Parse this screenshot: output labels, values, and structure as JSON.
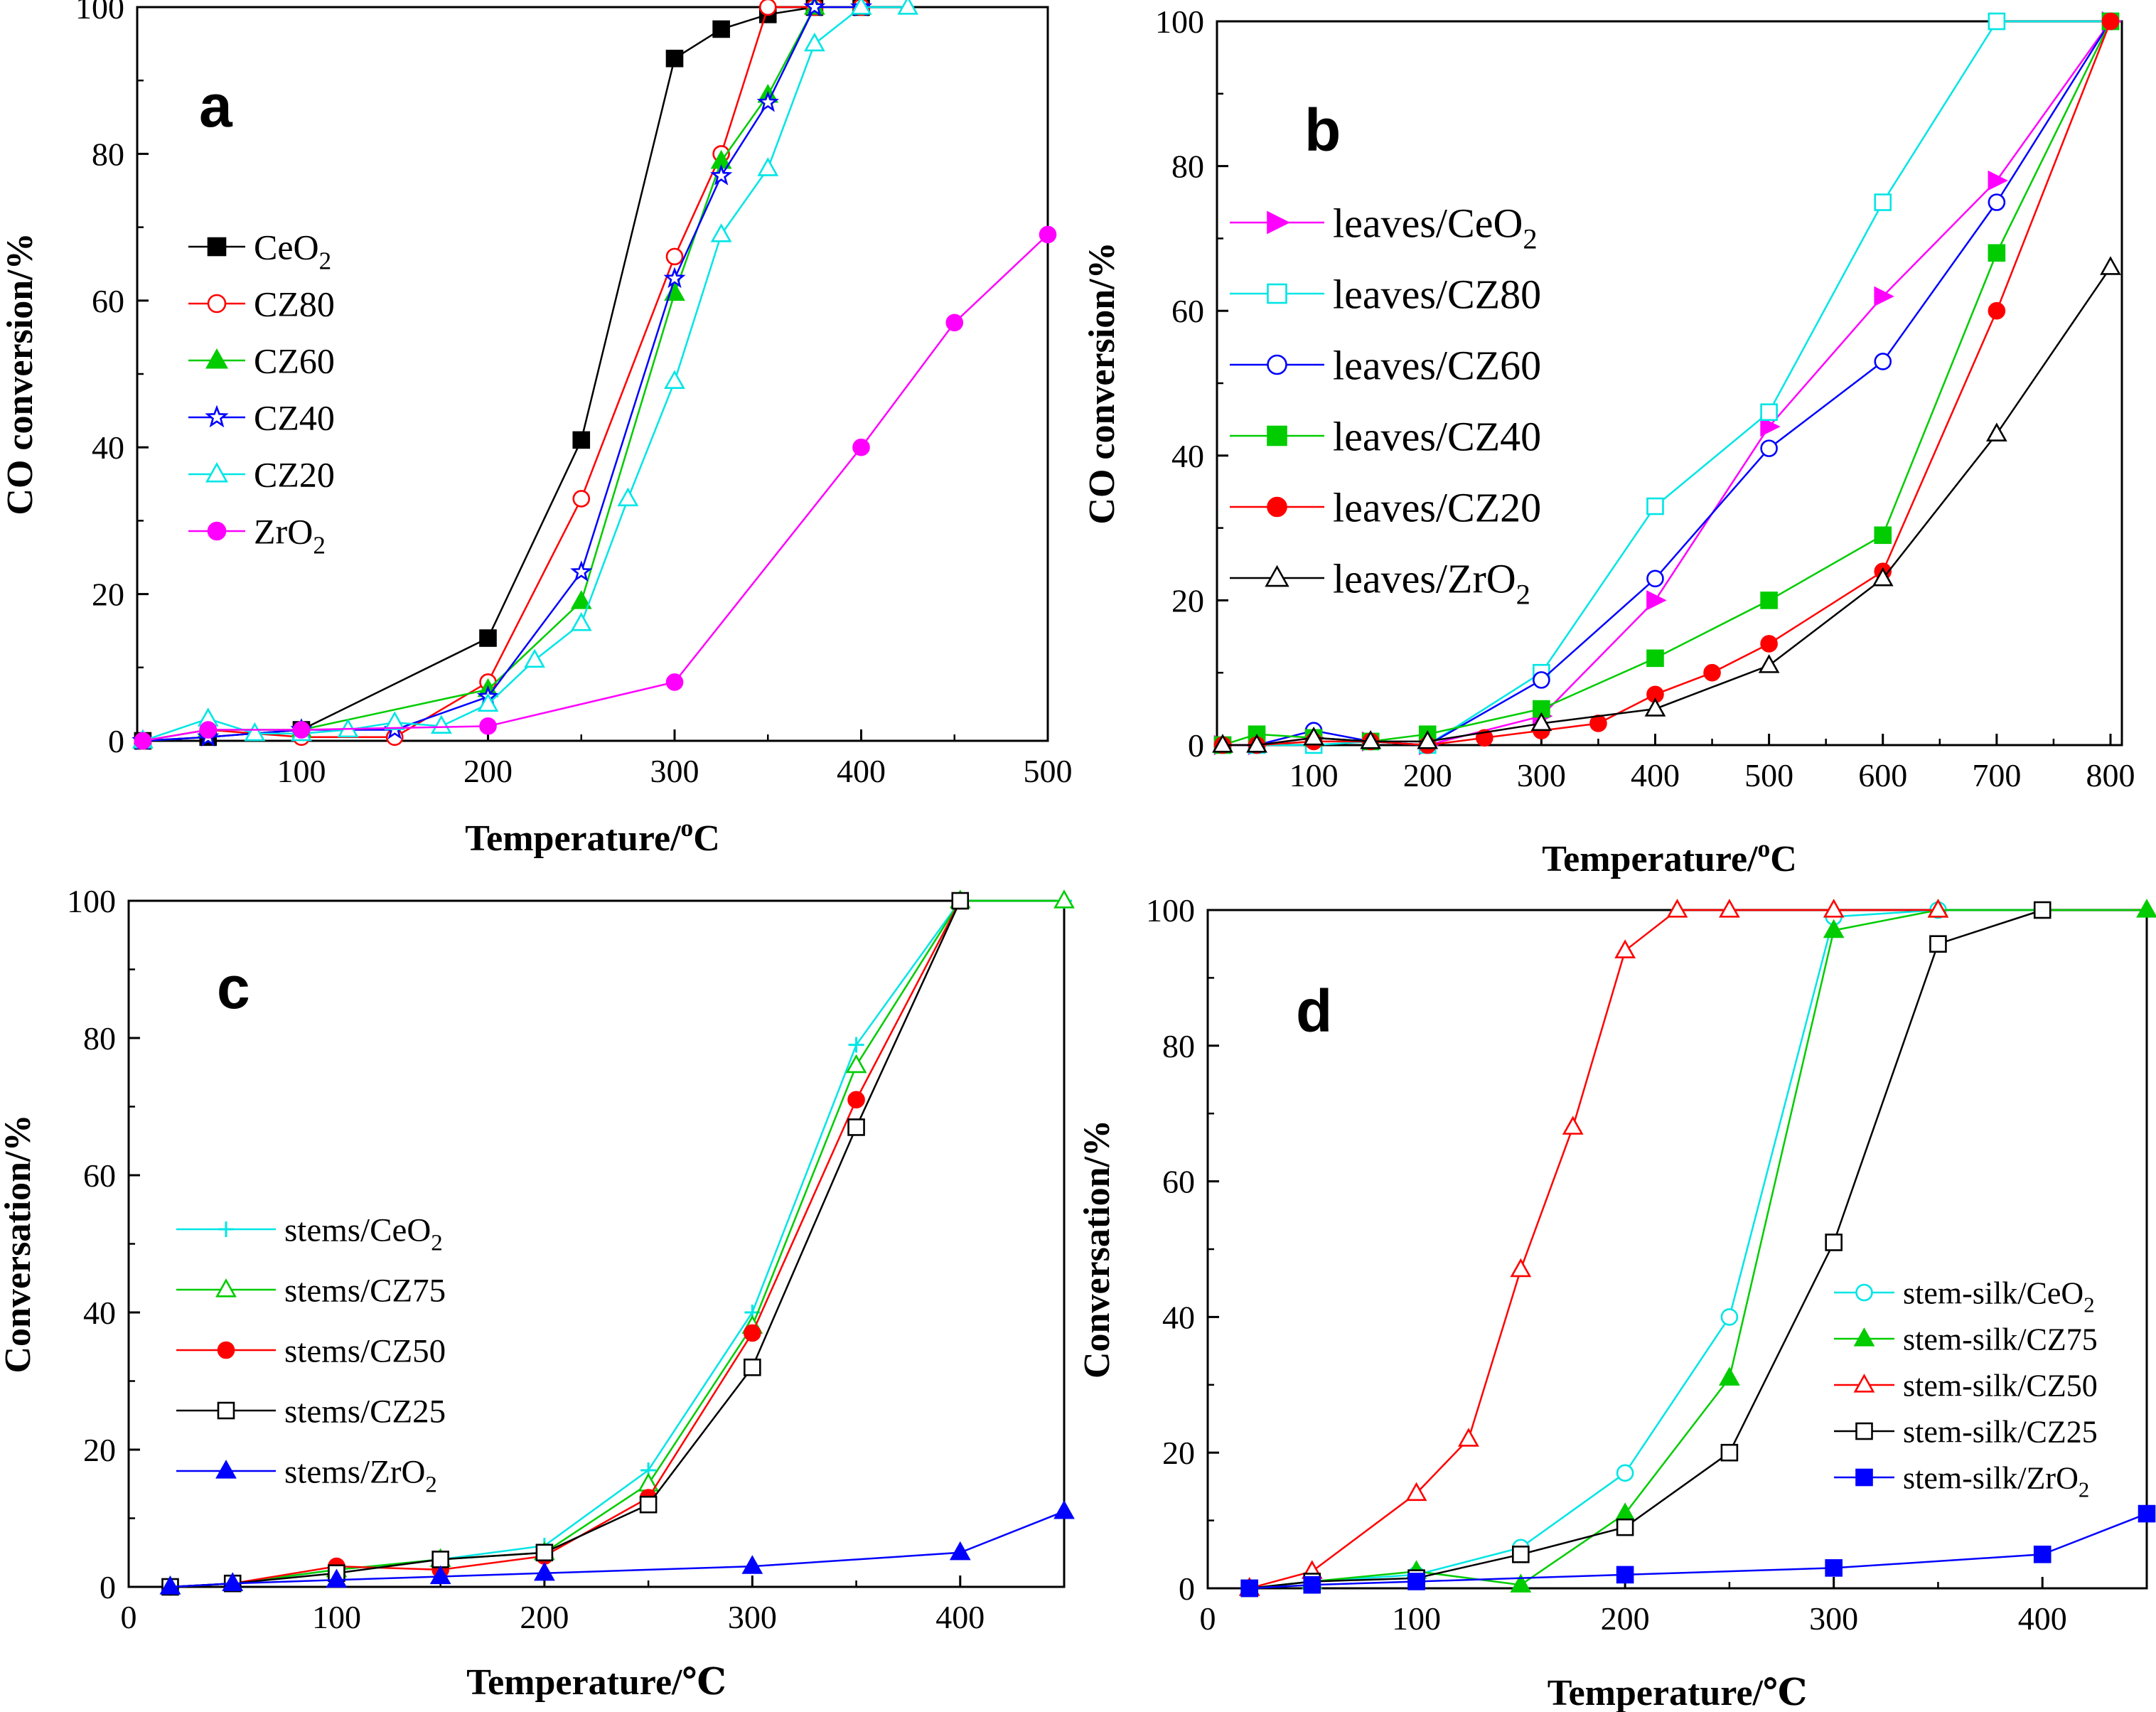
{
  "figure": {
    "panels": [
      "a",
      "b",
      "c",
      "d"
    ]
  },
  "chart_data": [
    {
      "panel": "a",
      "type": "line",
      "xlabel": "Temperature/oC",
      "ylabel": "CO conversion/%",
      "xlim": [
        12,
        500
      ],
      "ylim": [
        0,
        100
      ],
      "xticks": [
        100,
        200,
        300,
        400,
        500
      ],
      "yticks": [
        0,
        20,
        40,
        60,
        80,
        100
      ],
      "series": [
        {
          "name": "CeO2",
          "color": "#000000",
          "marker": "square-filled",
          "x": [
            15,
            50,
            100,
            200,
            250,
            300,
            325,
            350,
            375,
            400
          ],
          "y": [
            0,
            0.5,
            1.5,
            14,
            41,
            93,
            97,
            99,
            100,
            100
          ]
        },
        {
          "name": "CZ80",
          "color": "#ff0000",
          "marker": "circle-open",
          "x": [
            15,
            50,
            100,
            150,
            200,
            250,
            300,
            325,
            350,
            375,
            400
          ],
          "y": [
            0,
            1.5,
            0.5,
            0.5,
            8,
            33,
            66,
            80,
            100,
            100,
            100
          ]
        },
        {
          "name": "CZ60",
          "color": "#00cc00",
          "marker": "triangle-filled",
          "x": [
            15,
            50,
            100,
            200,
            250,
            300,
            325,
            350,
            375,
            400
          ],
          "y": [
            0,
            1.5,
            1.5,
            7,
            19,
            61,
            79,
            88,
            100,
            100
          ]
        },
        {
          "name": "CZ40",
          "color": "#0000ff",
          "marker": "star-open",
          "x": [
            15,
            50,
            100,
            150,
            200,
            250,
            300,
            325,
            350,
            375,
            400
          ],
          "y": [
            0,
            0.5,
            1.5,
            1.5,
            6,
            23,
            63,
            77,
            87,
            100,
            100
          ]
        },
        {
          "name": "CZ20",
          "color": "#00e5e5",
          "marker": "triangle-open",
          "x": [
            15,
            50,
            75,
            100,
            125,
            150,
            175,
            200,
            225,
            250,
            275,
            300,
            325,
            350,
            375,
            400,
            425
          ],
          "y": [
            0,
            3,
            1,
            1,
            1.5,
            2.5,
            2,
            5,
            11,
            16,
            33,
            49,
            69,
            78,
            95,
            100,
            100
          ]
        },
        {
          "name": "ZrO2",
          "color": "#ff00ff",
          "marker": "circle-filled",
          "x": [
            15,
            50,
            100,
            200,
            300,
            400,
            450,
            500
          ],
          "y": [
            0,
            1.5,
            1.5,
            2,
            8,
            40,
            57,
            69
          ]
        }
      ],
      "legend": [
        "CeO2",
        "CZ80",
        "CZ60",
        "CZ40",
        "CZ20",
        "ZrO2"
      ]
    },
    {
      "panel": "b",
      "type": "line",
      "xlabel": "Temperature/oC",
      "ylabel": "CO conversion/%",
      "xlim": [
        15,
        810
      ],
      "ylim": [
        0,
        100
      ],
      "xticks": [
        100,
        200,
        300,
        400,
        500,
        600,
        700,
        800
      ],
      "yticks": [
        0,
        20,
        40,
        60,
        80,
        100
      ],
      "series": [
        {
          "name": "leaves/CeO2",
          "color": "#ff00ff",
          "marker": "triangle-right-filled",
          "x": [
            20,
            50,
            100,
            150,
            200,
            300,
            400,
            500,
            600,
            700,
            800
          ],
          "y": [
            0,
            0,
            1,
            0.5,
            0,
            4,
            20,
            44,
            62,
            78,
            100
          ]
        },
        {
          "name": "leaves/CZ80",
          "color": "#00e5e5",
          "marker": "square-open",
          "x": [
            20,
            50,
            100,
            150,
            200,
            300,
            400,
            500,
            600,
            700,
            800
          ],
          "y": [
            0,
            0,
            0,
            0.5,
            0,
            10,
            33,
            46,
            75,
            100,
            100
          ]
        },
        {
          "name": "leaves/CZ60",
          "color": "#0000ff",
          "marker": "circle-open",
          "x": [
            20,
            50,
            100,
            150,
            200,
            300,
            400,
            500,
            600,
            700,
            800
          ],
          "y": [
            0,
            0,
            2,
            0.5,
            0,
            9,
            23,
            41,
            53,
            75,
            100
          ]
        },
        {
          "name": "leaves/CZ40",
          "color": "#00cc00",
          "marker": "square-filled",
          "x": [
            20,
            50,
            100,
            150,
            200,
            300,
            400,
            500,
            600,
            700,
            800
          ],
          "y": [
            0,
            1.5,
            1,
            0.5,
            1.5,
            5,
            12,
            20,
            29,
            68,
            100
          ]
        },
        {
          "name": "leaves/CZ20",
          "color": "#ff0000",
          "marker": "circle-filled",
          "x": [
            20,
            50,
            100,
            150,
            200,
            250,
            300,
            350,
            400,
            450,
            500,
            600,
            700,
            800
          ],
          "y": [
            0,
            0,
            0.5,
            0.5,
            0,
            1,
            2,
            3,
            7,
            10,
            14,
            24,
            60,
            100
          ]
        },
        {
          "name": "leaves/ZrO2",
          "color": "#000000",
          "marker": "triangle-open",
          "x": [
            20,
            50,
            100,
            150,
            200,
            300,
            400,
            500,
            600,
            700,
            800
          ],
          "y": [
            0,
            0,
            1,
            0.5,
            0.5,
            3,
            5,
            11,
            23,
            43,
            66
          ]
        }
      ],
      "legend": [
        "leaves/CeO2",
        "leaves/CZ80",
        "leaves/CZ60",
        "leaves/CZ40",
        "leaves/CZ20",
        "leaves/ZrO2"
      ]
    },
    {
      "panel": "c",
      "type": "line",
      "xlabel": "Temperature/℃",
      "ylabel": "Conversation/%",
      "xlim": [
        0,
        450
      ],
      "ylim": [
        0,
        100
      ],
      "xticks": [
        0,
        100,
        200,
        300,
        400
      ],
      "yticks": [
        0,
        20,
        40,
        60,
        80,
        100
      ],
      "series": [
        {
          "name": "stems/CeO2",
          "color": "#00e5e5",
          "marker": "plus",
          "x": [
            20,
            50,
            100,
            150,
            200,
            250,
            300,
            350,
            400,
            450
          ],
          "y": [
            0,
            0.5,
            2.5,
            4,
            6,
            17,
            40,
            79,
            100,
            100
          ]
        },
        {
          "name": "stems/CZ75",
          "color": "#00cc00",
          "marker": "triangle-open",
          "x": [
            20,
            50,
            100,
            150,
            200,
            250,
            300,
            350,
            400,
            450
          ],
          "y": [
            0,
            0.5,
            2.5,
            4,
            5,
            15,
            38,
            76,
            100,
            100
          ]
        },
        {
          "name": "stems/CZ50",
          "color": "#ff0000",
          "marker": "circle-filled",
          "x": [
            20,
            50,
            100,
            150,
            200,
            250,
            300,
            350,
            400
          ],
          "y": [
            0,
            0.5,
            3,
            2.5,
            4.5,
            13,
            37,
            71,
            100
          ]
        },
        {
          "name": "stems/CZ25",
          "color": "#000000",
          "marker": "square-open",
          "x": [
            20,
            50,
            100,
            150,
            200,
            250,
            300,
            350,
            400
          ],
          "y": [
            0,
            0.5,
            2,
            4,
            5,
            12,
            32,
            67,
            100
          ]
        },
        {
          "name": "stems/ZrO2",
          "color": "#0000ff",
          "marker": "triangle-filled",
          "x": [
            20,
            50,
            100,
            150,
            200,
            300,
            400,
            450
          ],
          "y": [
            0,
            0.5,
            1,
            1.5,
            2,
            3,
            5,
            11
          ]
        }
      ],
      "legend": [
        "stems/CeO2",
        "stems/CZ75",
        "stems/CZ50",
        "stems/CZ25",
        "stems/ZrO2"
      ]
    },
    {
      "panel": "d",
      "type": "line",
      "xlabel": "Temperature/℃",
      "ylabel": "Conversation/%",
      "xlim": [
        0,
        450
      ],
      "ylim": [
        0,
        100
      ],
      "xticks": [
        0,
        100,
        200,
        300,
        400
      ],
      "yticks": [
        0,
        20,
        40,
        60,
        80,
        100
      ],
      "series": [
        {
          "name": "stem-silk/CeO2",
          "color": "#00e5e5",
          "marker": "circle-open",
          "x": [
            20,
            50,
            100,
            150,
            200,
            250,
            300,
            350,
            400
          ],
          "y": [
            0,
            1,
            2,
            6,
            17,
            40,
            99,
            100,
            100
          ]
        },
        {
          "name": "stem-silk/CZ75",
          "color": "#00cc00",
          "marker": "triangle-filled",
          "x": [
            20,
            50,
            100,
            150,
            200,
            250,
            300,
            350,
            450
          ],
          "y": [
            0,
            1,
            2.5,
            0.5,
            11,
            31,
            97,
            100,
            100
          ]
        },
        {
          "name": "stem-silk/CZ50",
          "color": "#ff0000",
          "marker": "triangle-open",
          "x": [
            20,
            50,
            100,
            125,
            150,
            175,
            200,
            225,
            250,
            300,
            350
          ],
          "y": [
            0,
            2.5,
            14,
            22,
            47,
            68,
            94,
            100,
            100,
            100,
            100
          ]
        },
        {
          "name": "stem-silk/CZ25",
          "color": "#000000",
          "marker": "square-open",
          "x": [
            20,
            50,
            100,
            150,
            200,
            250,
            300,
            350,
            400
          ],
          "y": [
            0,
            1,
            1.5,
            5,
            9,
            20,
            51,
            95,
            100
          ]
        },
        {
          "name": "stem-silk/ZrO2",
          "color": "#0000ff",
          "marker": "square-filled",
          "x": [
            20,
            50,
            100,
            200,
            300,
            400,
            450
          ],
          "y": [
            0,
            0.5,
            1,
            2,
            3,
            5,
            11
          ]
        }
      ],
      "legend": [
        "stem-silk/CeO2",
        "stem-silk/CZ75",
        "stem-silk/CZ50",
        "stem-silk/CZ25",
        "stem-silk/ZrO2"
      ]
    }
  ]
}
